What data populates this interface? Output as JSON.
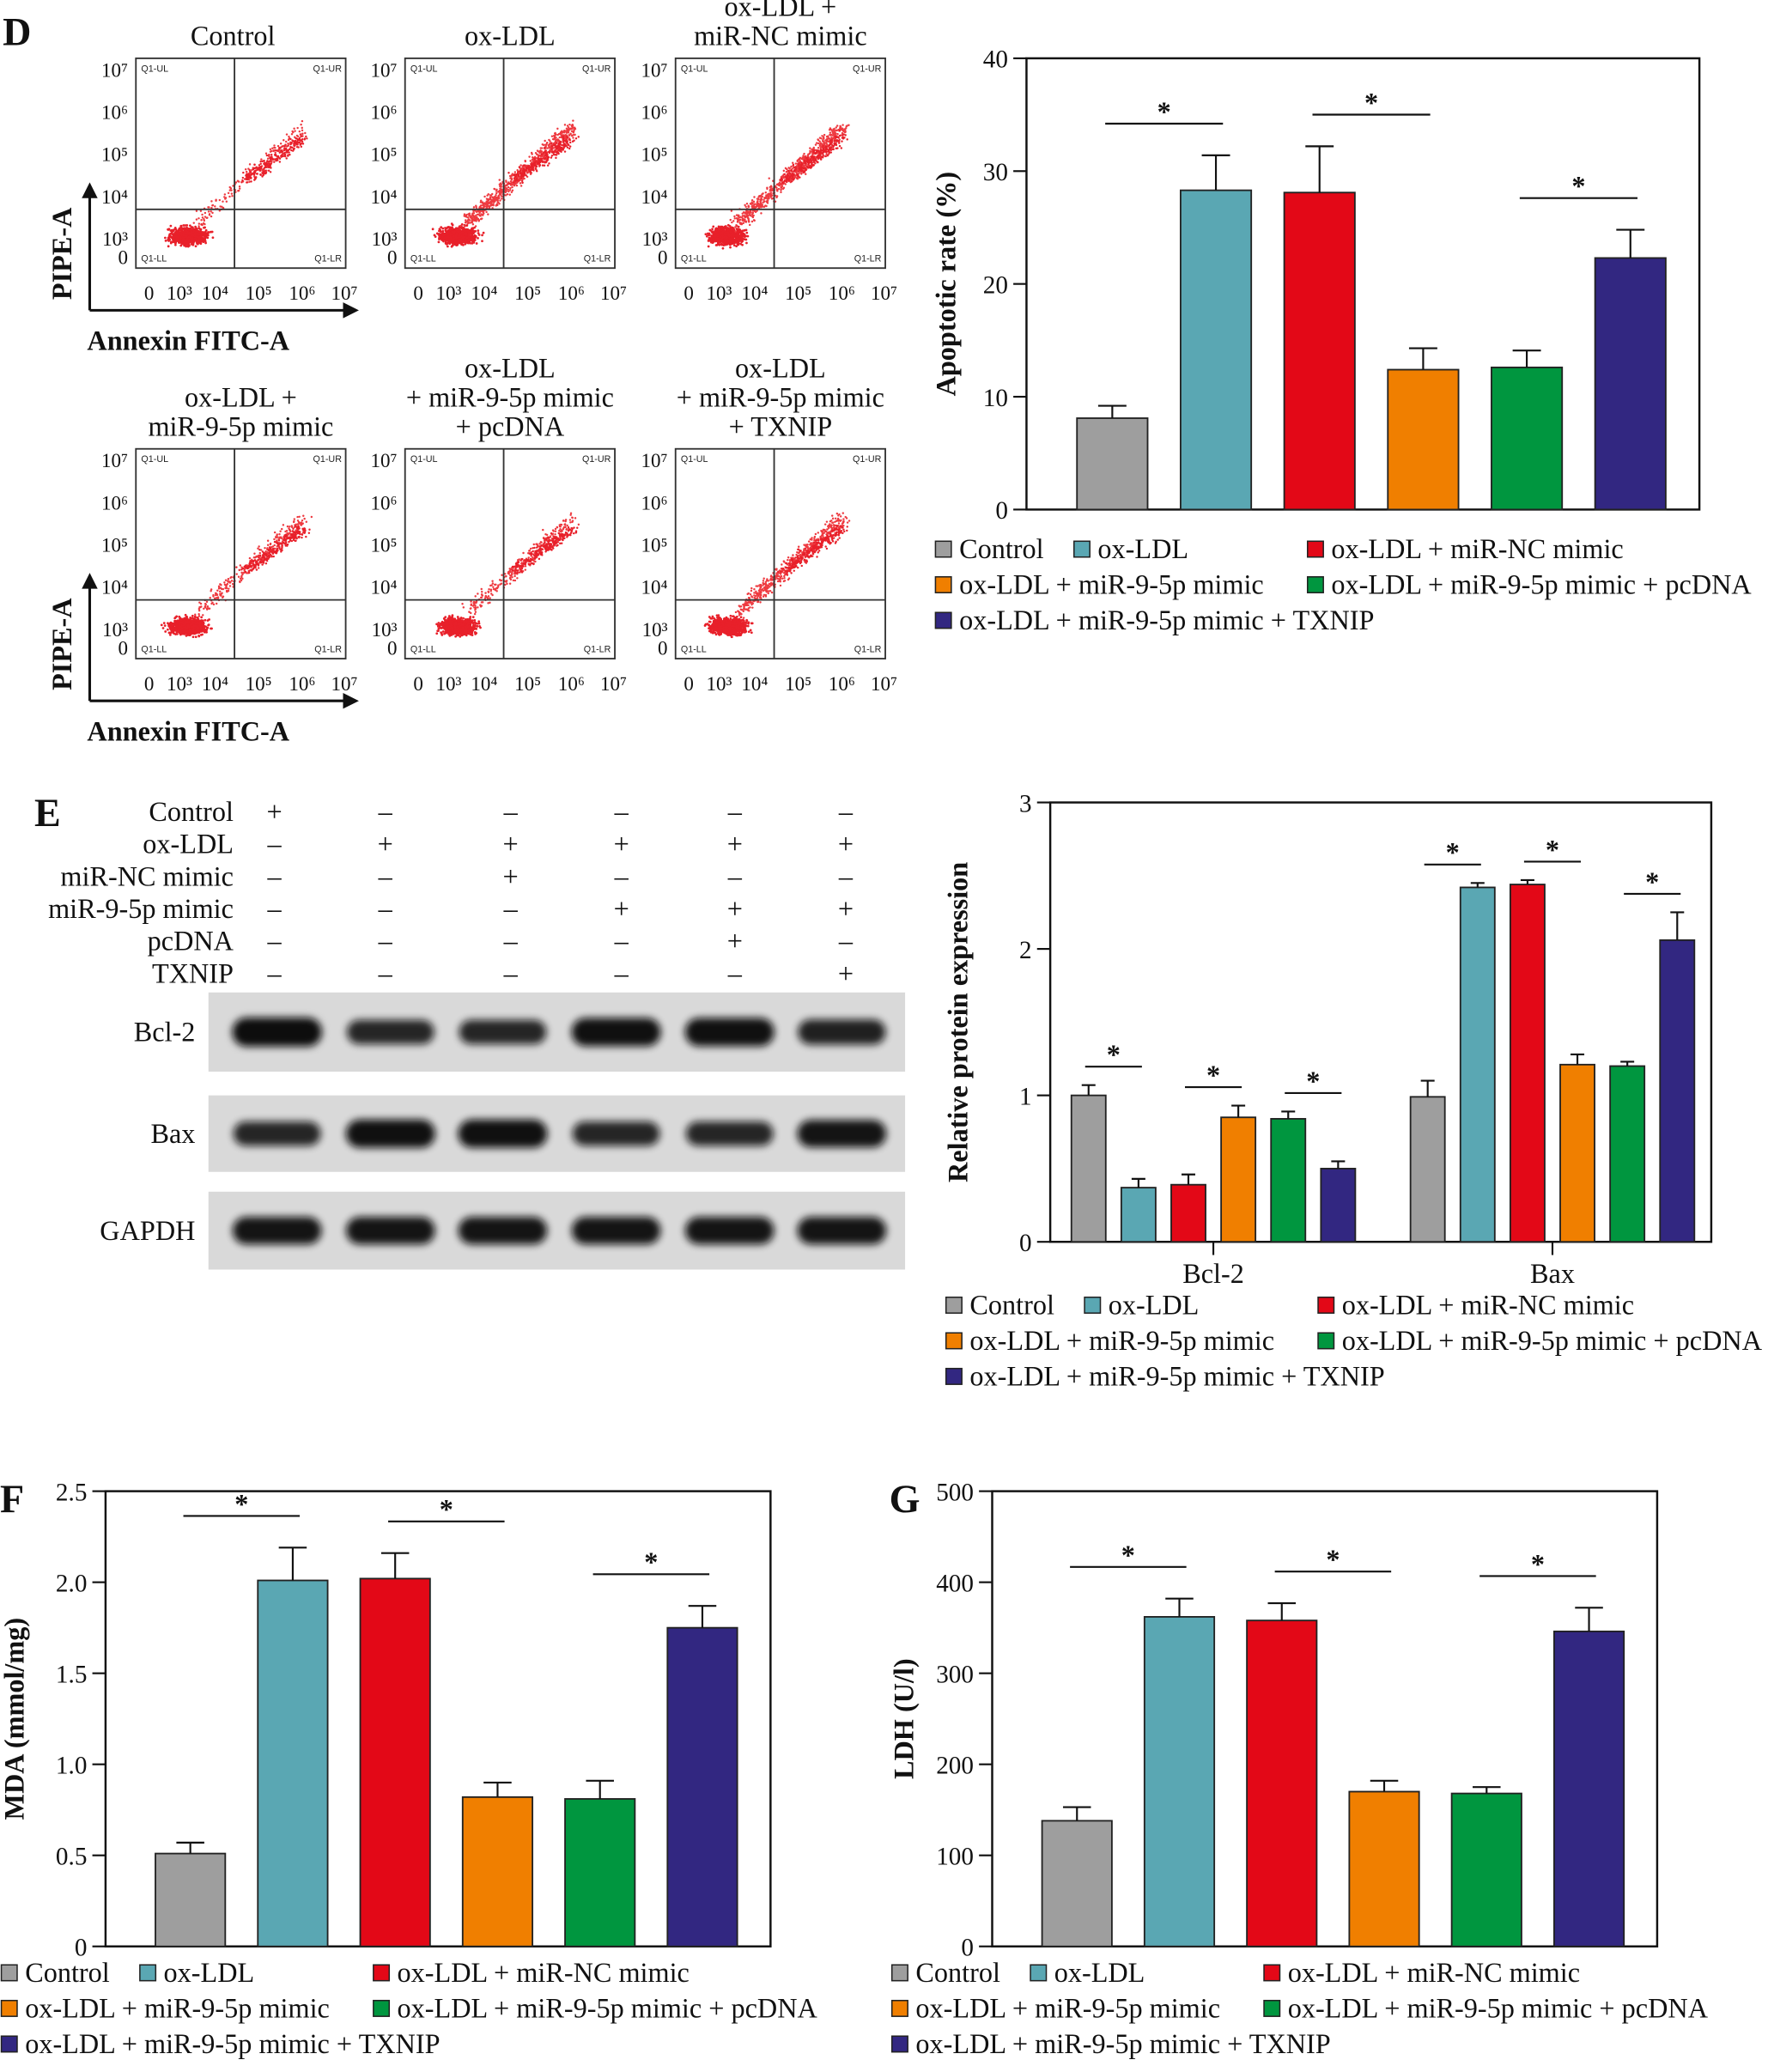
{
  "panels": {
    "D": "D",
    "E": "E",
    "F": "F",
    "G": "G"
  },
  "flow": {
    "y_axis_label": "PIPE-A",
    "x_axis_label": "Annexin FITC-A",
    "y_ticks": [
      "10⁷",
      "10⁶",
      "10⁵",
      "10⁴",
      "10³",
      "0"
    ],
    "x_ticks": [
      "0",
      "10³",
      "10⁴",
      "10⁵",
      "10⁶",
      "10⁷"
    ],
    "quadrants": {
      "ul": "Q1-UL",
      "ur": "Q1-UR",
      "ll": "Q1-LL",
      "lr": "Q1-LR"
    },
    "plots": [
      {
        "title_lines": [
          "Control"
        ],
        "tail_density": 0.25
      },
      {
        "title_lines": [
          "ox-LDL"
        ],
        "tail_density": 1.0
      },
      {
        "title_lines": [
          "ox-LDL +",
          "miR-NC mimic"
        ],
        "tail_density": 0.95
      },
      {
        "title_lines": [
          "ox-LDL +",
          "miR-9-5p mimic"
        ],
        "tail_density": 0.4
      },
      {
        "title_lines": [
          "ox-LDL",
          "+ miR-9-5p mimic",
          "+ pcDNA"
        ],
        "tail_density": 0.4
      },
      {
        "title_lines": [
          "ox-LDL",
          "+ miR-9-5p mimic",
          "+ TXNIP"
        ],
        "tail_density": 0.75
      }
    ]
  },
  "western": {
    "treatments": [
      {
        "label": "Control",
        "marks": [
          "+",
          "–",
          "–",
          "–",
          "–",
          "–"
        ]
      },
      {
        "label": "ox-LDL",
        "marks": [
          "–",
          "+",
          "+",
          "+",
          "+",
          "+"
        ]
      },
      {
        "label": "miR-NC mimic",
        "marks": [
          "–",
          "–",
          "+",
          "–",
          "–",
          "–"
        ]
      },
      {
        "label": "miR-9-5p mimic",
        "marks": [
          "–",
          "–",
          "–",
          "+",
          "+",
          "+"
        ]
      },
      {
        "label": "pcDNA",
        "marks": [
          "–",
          "–",
          "–",
          "–",
          "+",
          "–"
        ]
      },
      {
        "label": "TXNIP",
        "marks": [
          "–",
          "–",
          "–",
          "–",
          "–",
          "+"
        ]
      }
    ],
    "blots": [
      {
        "label": "Bcl-2",
        "band_intensity": [
          1.0,
          0.7,
          0.7,
          0.95,
          0.95,
          0.75
        ]
      },
      {
        "label": "Bax",
        "band_intensity": [
          0.7,
          0.95,
          0.95,
          0.7,
          0.7,
          0.9
        ]
      },
      {
        "label": "GAPDH",
        "band_intensity": [
          0.9,
          0.9,
          0.9,
          0.9,
          0.9,
          0.9
        ]
      }
    ]
  },
  "colors": {
    "Control": "#9e9e9e",
    "ox-LDL": "#5aa7b3",
    "miR-NC": "#e30817",
    "miR-9-5p": "#f07f00",
    "pcDNA": "#00963f",
    "TXNIP": "#322781"
  },
  "chart_data": [
    {
      "type": "bar",
      "ylabel": "Apoptotic rate (%)",
      "ylim": [
        0,
        40
      ],
      "yticks": [
        "0",
        "10",
        "20",
        "30",
        "40"
      ],
      "ytick_values": [
        0,
        10,
        20,
        30,
        40
      ],
      "categories": [
        ""
      ],
      "series": [
        {
          "name": "Control",
          "color": "#9e9e9e",
          "values": [
            8.1
          ],
          "errors": [
            1.1
          ]
        },
        {
          "name": "ox-LDL",
          "color": "#5aa7b3",
          "values": [
            28.3
          ],
          "errors": [
            3.1
          ]
        },
        {
          "name": "ox-LDL + miR-NC mimic",
          "color": "#e30817",
          "values": [
            28.1
          ],
          "errors": [
            4.1
          ]
        },
        {
          "name": "ox-LDL + miR-9-5p mimic",
          "color": "#f07f00",
          "values": [
            12.4
          ],
          "errors": [
            1.9
          ]
        },
        {
          "name": "ox-LDL + miR-9-5p mimic + pcDNA",
          "color": "#00963f",
          "values": [
            12.6
          ],
          "errors": [
            1.5
          ]
        },
        {
          "name": "ox-LDL + miR-9-5p mimic + TXNIP",
          "color": "#322781",
          "values": [
            22.3
          ],
          "errors": [
            2.5
          ]
        }
      ],
      "significance": [
        {
          "group": 0,
          "from": 0,
          "to": 1,
          "label": "*"
        },
        {
          "group": 0,
          "from": 2,
          "to": 3,
          "label": "*"
        },
        {
          "group": 0,
          "from": 4,
          "to": 5,
          "label": "*"
        }
      ],
      "legend": "bottom"
    },
    {
      "type": "bar",
      "ylabel": "Relative protein expression",
      "ylim": [
        0,
        3
      ],
      "yticks": [
        "0",
        "1",
        "2",
        "3"
      ],
      "ytick_values": [
        0,
        1,
        2,
        3
      ],
      "categories": [
        "Bcl-2",
        "Bax"
      ],
      "series": [
        {
          "name": "Control",
          "color": "#9e9e9e",
          "values": [
            1.0,
            0.99
          ],
          "errors": [
            0.07,
            0.11
          ]
        },
        {
          "name": "ox-LDL",
          "color": "#5aa7b3",
          "values": [
            0.37,
            2.42
          ],
          "errors": [
            0.06,
            0.03
          ]
        },
        {
          "name": "ox-LDL + miR-NC mimic",
          "color": "#e30817",
          "values": [
            0.39,
            2.44
          ],
          "errors": [
            0.07,
            0.03
          ]
        },
        {
          "name": "ox-LDL + miR-9-5p mimic",
          "color": "#f07f00",
          "values": [
            0.85,
            1.21
          ],
          "errors": [
            0.08,
            0.07
          ]
        },
        {
          "name": "ox-LDL + miR-9-5p mimic + pcDNA",
          "color": "#00963f",
          "values": [
            0.84,
            1.2
          ],
          "errors": [
            0.05,
            0.03
          ]
        },
        {
          "name": "ox-LDL + miR-9-5p mimic + TXNIP",
          "color": "#322781",
          "values": [
            0.5,
            2.06
          ],
          "errors": [
            0.05,
            0.19
          ]
        }
      ],
      "significance": [
        {
          "group": 0,
          "from": 0,
          "to": 1,
          "label": "*"
        },
        {
          "group": 0,
          "from": 2,
          "to": 3,
          "label": "*"
        },
        {
          "group": 0,
          "from": 4,
          "to": 5,
          "label": "*"
        },
        {
          "group": 1,
          "from": 0,
          "to": 1,
          "label": "*"
        },
        {
          "group": 1,
          "from": 2,
          "to": 3,
          "label": "*"
        },
        {
          "group": 1,
          "from": 4,
          "to": 5,
          "label": "*"
        }
      ],
      "legend": "bottom"
    },
    {
      "type": "bar",
      "ylabel": "MDA (mmol/mg)",
      "ylim": [
        0,
        2.5
      ],
      "yticks": [
        "0",
        "0.5",
        "1.0",
        "1.5",
        "2.0",
        "2.5"
      ],
      "ytick_values": [
        0,
        0.5,
        1,
        1.5,
        2,
        2.5
      ],
      "categories": [
        ""
      ],
      "series": [
        {
          "name": "Control",
          "color": "#9e9e9e",
          "values": [
            0.51
          ],
          "errors": [
            0.06
          ]
        },
        {
          "name": "ox-LDL",
          "color": "#5aa7b3",
          "values": [
            2.01
          ],
          "errors": [
            0.18
          ]
        },
        {
          "name": "ox-LDL + miR-NC mimic",
          "color": "#e30817",
          "values": [
            2.02
          ],
          "errors": [
            0.14
          ]
        },
        {
          "name": "ox-LDL + miR-9-5p mimic",
          "color": "#f07f00",
          "values": [
            0.82
          ],
          "errors": [
            0.08
          ]
        },
        {
          "name": "ox-LDL + miR-9-5p mimic + pcDNA",
          "color": "#00963f",
          "values": [
            0.81
          ],
          "errors": [
            0.1
          ]
        },
        {
          "name": "ox-LDL + miR-9-5p mimic + TXNIP",
          "color": "#322781",
          "values": [
            1.75
          ],
          "errors": [
            0.12
          ]
        }
      ],
      "significance": [
        {
          "group": 0,
          "from": 0,
          "to": 1,
          "label": "*"
        },
        {
          "group": 0,
          "from": 2,
          "to": 3,
          "label": "*"
        },
        {
          "group": 0,
          "from": 4,
          "to": 5,
          "label": "*"
        }
      ],
      "legend": "bottom"
    },
    {
      "type": "bar",
      "ylabel": "LDH (U/l)",
      "ylim": [
        0,
        500
      ],
      "yticks": [
        "0",
        "100",
        "200",
        "300",
        "400",
        "500"
      ],
      "ytick_values": [
        0,
        100,
        200,
        300,
        400,
        500
      ],
      "categories": [
        ""
      ],
      "series": [
        {
          "name": "Control",
          "color": "#9e9e9e",
          "values": [
            138
          ],
          "errors": [
            15
          ]
        },
        {
          "name": "ox-LDL",
          "color": "#5aa7b3",
          "values": [
            362
          ],
          "errors": [
            20
          ]
        },
        {
          "name": "ox-LDL + miR-NC mimic",
          "color": "#e30817",
          "values": [
            358
          ],
          "errors": [
            19
          ]
        },
        {
          "name": "ox-LDL + miR-9-5p mimic",
          "color": "#f07f00",
          "values": [
            170
          ],
          "errors": [
            12
          ]
        },
        {
          "name": "ox-LDL + miR-9-5p mimic + pcDNA",
          "color": "#00963f",
          "values": [
            168
          ],
          "errors": [
            7
          ]
        },
        {
          "name": "ox-LDL + miR-9-5p mimic + TXNIP",
          "color": "#322781",
          "values": [
            346
          ],
          "errors": [
            26
          ]
        }
      ],
      "significance": [
        {
          "group": 0,
          "from": 0,
          "to": 1,
          "label": "*"
        },
        {
          "group": 0,
          "from": 2,
          "to": 3,
          "label": "*"
        },
        {
          "group": 0,
          "from": 4,
          "to": 5,
          "label": "*"
        }
      ],
      "legend": "bottom"
    }
  ]
}
